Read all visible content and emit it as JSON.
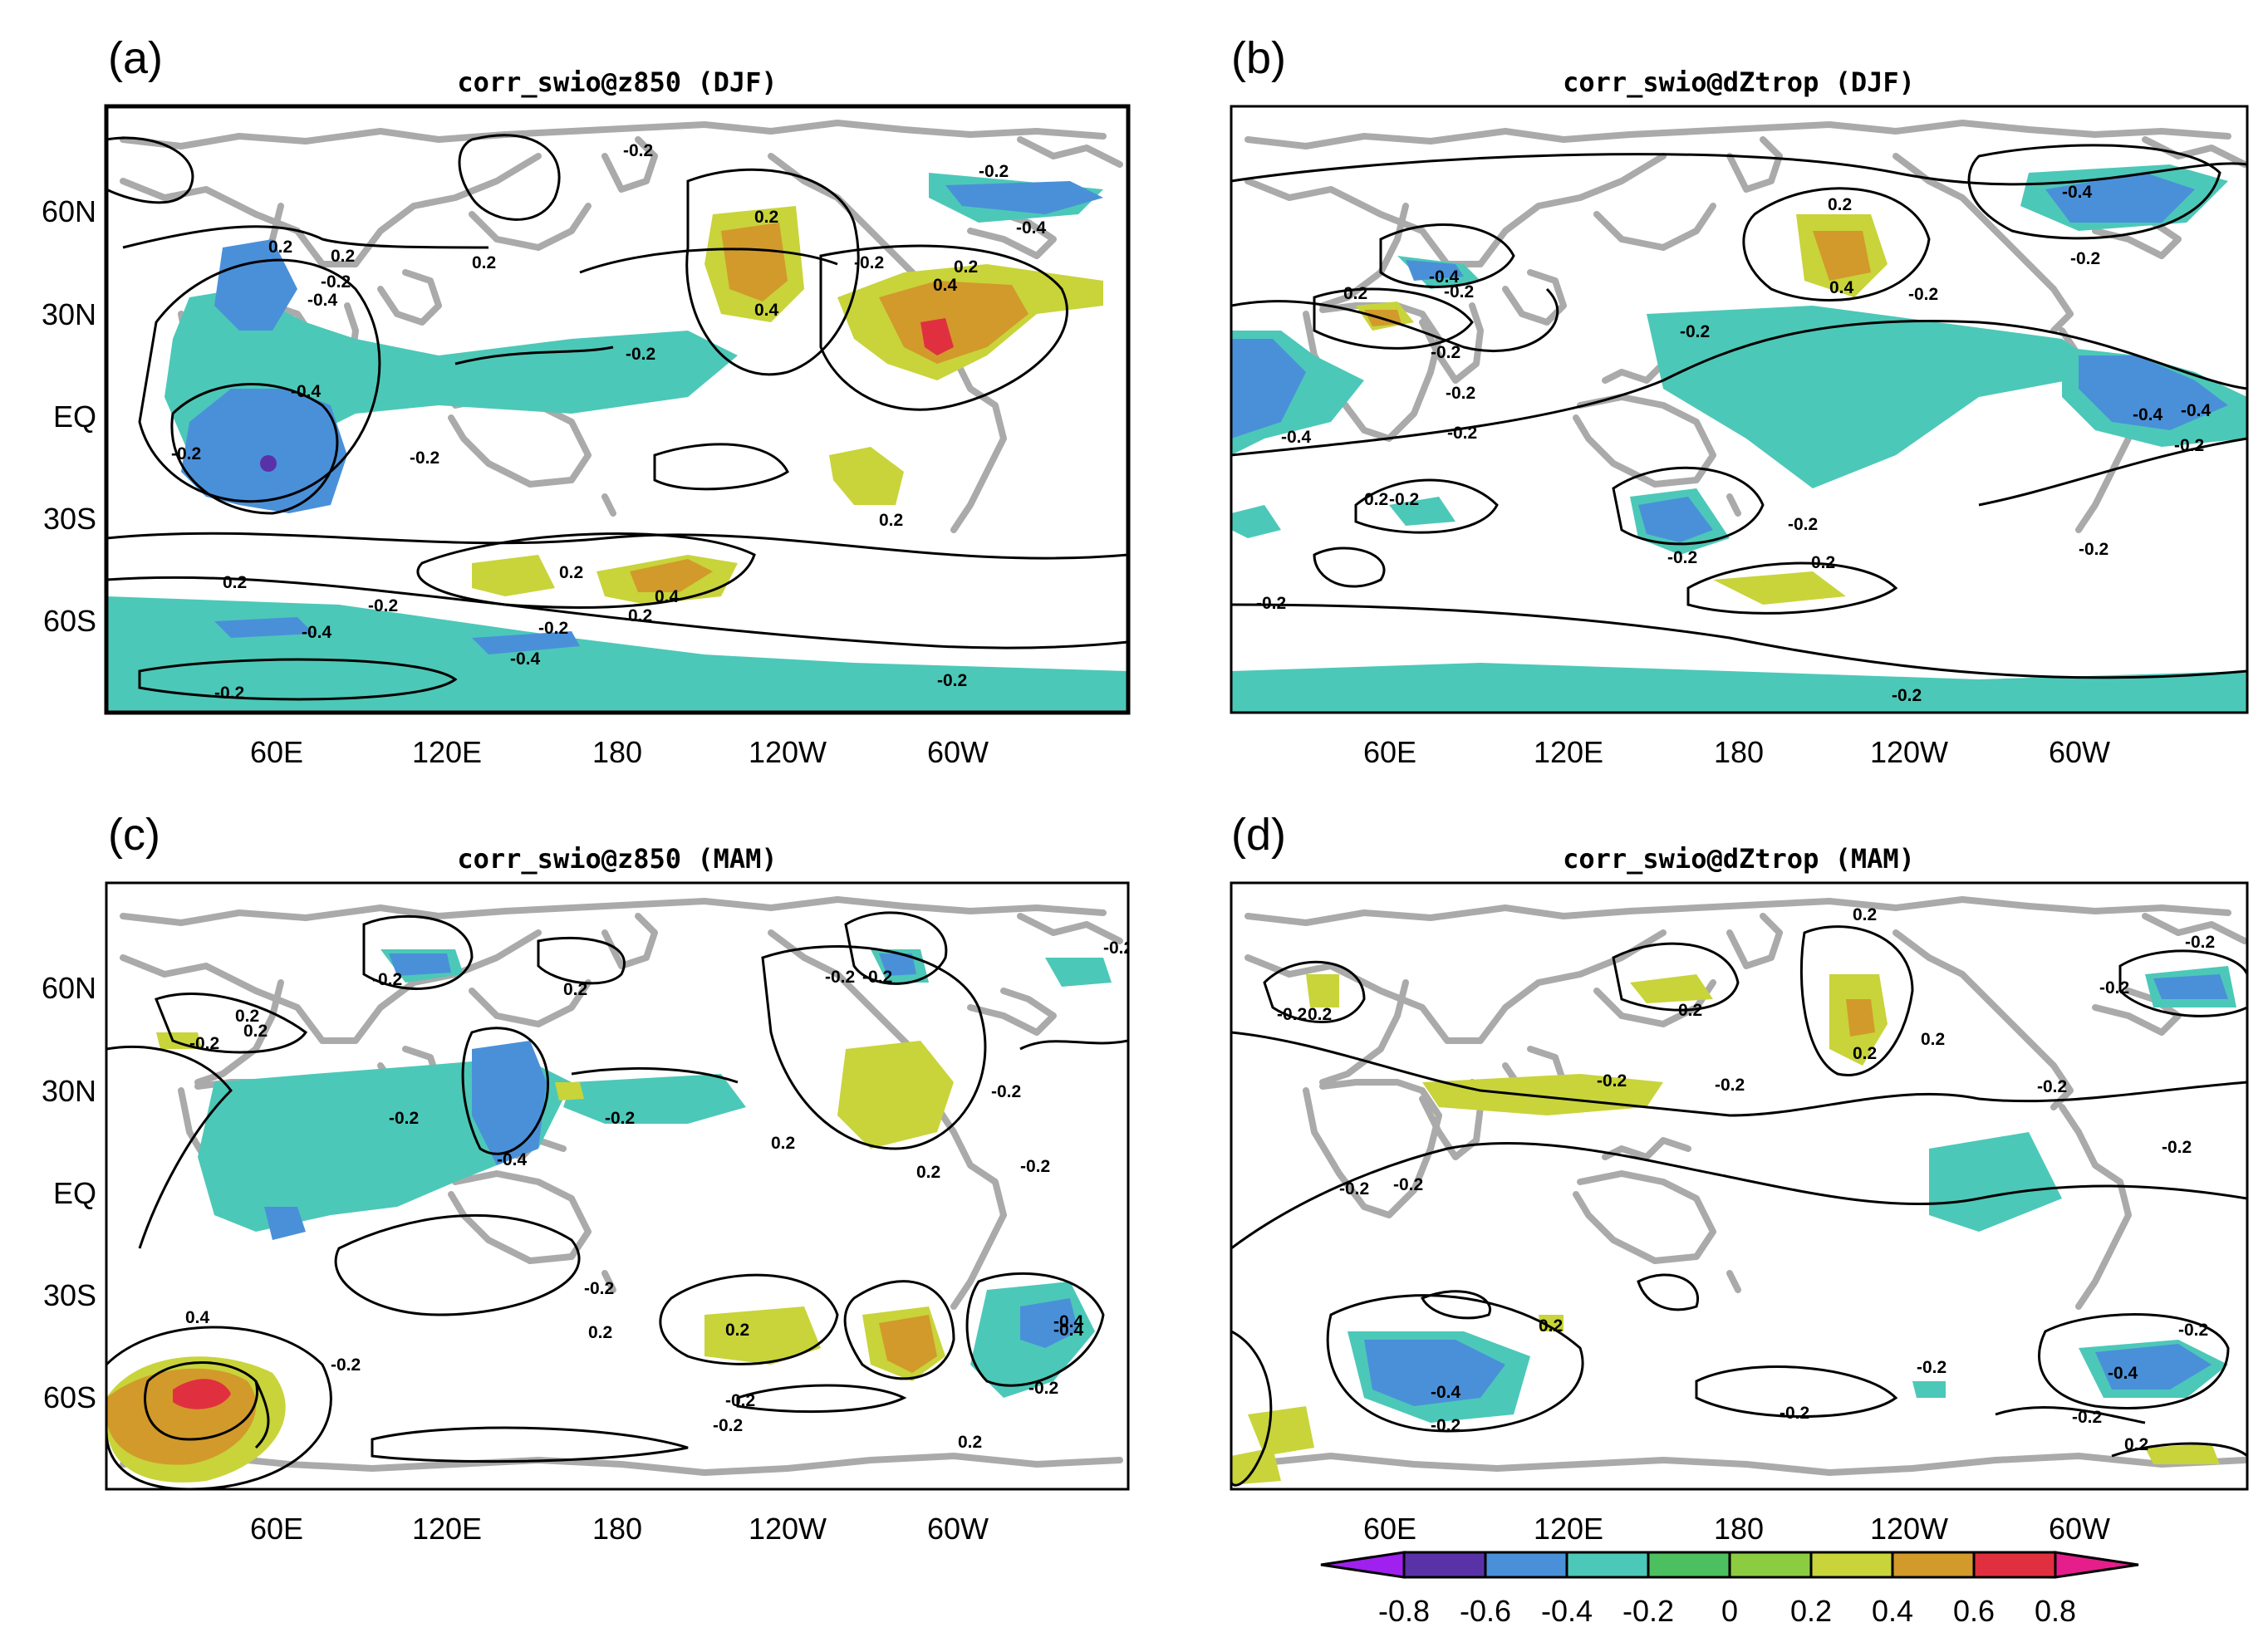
{
  "colors": {
    "c_m08": "#a020f0",
    "c_m06": "#5a32a8",
    "c_m04": "#4a90d9",
    "c_m02": "#4cc8b8",
    "c_0": "#4cc060",
    "c_p02": "#c8d43a",
    "c_p04": "#d29a2a",
    "c_p06": "#e03040",
    "c_p08": "#e61e8c",
    "coast": "#aaaaaa"
  },
  "panels": [
    {
      "id": "a",
      "label": "(a)",
      "title": "corr_swio@z850 (DJF)",
      "y_ticks": [
        "60N",
        "30N",
        "EQ",
        "30S",
        "60S"
      ],
      "x_ticks": [
        "60E",
        "120E",
        "180",
        "120W",
        "60W"
      ],
      "contour_labels": [
        "0.2",
        "0.2",
        "0.2",
        "-0.2",
        "-0.4",
        "-0.4",
        "-0.2",
        "-0.2",
        "-0.2",
        "0.2",
        "0.4",
        "0.2",
        "0.4",
        "-0.2",
        "-0.4",
        "-0.2",
        "-0.2",
        "0.2",
        "0.4",
        "0.2",
        "-0.2",
        "-0.4",
        "-0.2",
        "-0.4",
        "-0.2",
        "-0.2",
        "0.2",
        "0.2"
      ]
    },
    {
      "id": "b",
      "label": "(b)",
      "title": "corr_swio@dZtrop (DJF)",
      "y_ticks": [],
      "x_ticks": [
        "60E",
        "120E",
        "180",
        "120W",
        "60W"
      ],
      "contour_labels": [
        "-0.2",
        "-0.4",
        "-0.2",
        "0.2",
        "0.4",
        "-0.4",
        "-0.2",
        "0.2",
        "-0.2",
        "-0.2",
        "-0.4",
        "-0.2",
        "-0.4",
        "-0.4",
        "-0.2",
        "-0.2",
        "-0.2",
        "0.2",
        "-0.2",
        "-0.2",
        "0.2",
        "-0.2",
        "-0.2",
        "-0.2"
      ]
    },
    {
      "id": "c",
      "label": "(c)",
      "title": "corr_swio@z850 (MAM)",
      "y_ticks": [
        "60N",
        "30N",
        "EQ",
        "30S",
        "60S"
      ],
      "x_ticks": [
        "60E",
        "120E",
        "180",
        "120W",
        "60W"
      ],
      "contour_labels": [
        "-0.2",
        "0.2",
        "0.2",
        "0.2",
        "-0.2",
        "-0.2",
        "-0.2",
        "-0.2",
        "-0.2",
        "-0.4",
        "-0.2",
        "0.2",
        "0.2",
        "-0.2",
        "-0.2",
        "-0.4",
        "0.4",
        "-0.2",
        "-0.2",
        "-0.2",
        "0.2",
        "0.2",
        "0.2",
        "-0.2",
        "-0.4",
        "-0.2",
        "0.2"
      ]
    },
    {
      "id": "d",
      "label": "(d)",
      "title": "corr_swio@dZtrop (MAM)",
      "y_ticks": [],
      "x_ticks": [
        "60E",
        "120E",
        "180",
        "120W",
        "60W"
      ],
      "contour_labels": [
        "-0.2",
        "0.2",
        "0.2",
        "0.2",
        "-0.2",
        "-0.2",
        "0.2",
        "0.2",
        "-0.2",
        "-0.2",
        "-0.2",
        "-0.2",
        "-0.2",
        "0.2",
        "-0.4",
        "-0.2",
        "-0.2",
        "-0.2",
        "-0.2",
        "-0.2",
        "-0.4",
        "-0.2",
        "0.2"
      ]
    }
  ],
  "colorbar": {
    "levels": [
      "-0.8",
      "-0.6",
      "-0.4",
      "-0.2",
      "0",
      "0.2",
      "0.4",
      "0.6",
      "0.8"
    ]
  }
}
